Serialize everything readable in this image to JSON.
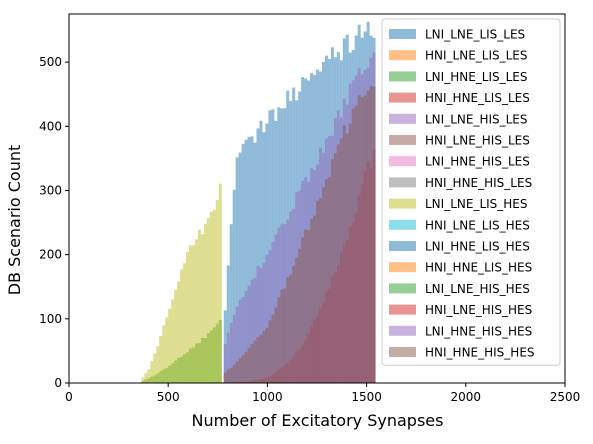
{
  "chart_data": {
    "type": "histogram",
    "xlabel": "Number of Excitatory Synapses",
    "ylabel": "DB Scenario Count",
    "xlim": [
      0,
      2500
    ],
    "ylim": [
      0,
      575
    ],
    "x_ticks": [
      "0",
      "500",
      "1000",
      "1500",
      "2000",
      "2500"
    ],
    "y_ticks": [
      "0",
      "100",
      "200",
      "300",
      "400",
      "500"
    ],
    "grid": false,
    "legend_position": "top-right",
    "bin_width": 15,
    "series": [
      {
        "name": "LNI_LNE_LIS_LES",
        "color": "#1f77b4",
        "x_start": 780,
        "x_end": 1545,
        "profile_points": [
          [
            780,
            80
          ],
          [
            840,
            345
          ],
          [
            900,
            370
          ],
          [
            1000,
            410
          ],
          [
            1100,
            440
          ],
          [
            1200,
            470
          ],
          [
            1300,
            500
          ],
          [
            1400,
            525
          ],
          [
            1450,
            540
          ],
          [
            1500,
            548
          ],
          [
            1545,
            548
          ]
        ]
      },
      {
        "name": "HNI_LNE_LIS_LES",
        "color": "#ff7f0e",
        "x_start": 0,
        "x_end": 0,
        "profile_points": []
      },
      {
        "name": "LNI_HNE_LIS_LES",
        "color": "#2ca02c",
        "x_start": 365,
        "x_end": 760,
        "profile_points": [
          [
            365,
            2
          ],
          [
            420,
            10
          ],
          [
            500,
            25
          ],
          [
            560,
            40
          ],
          [
            620,
            55
          ],
          [
            680,
            70
          ],
          [
            720,
            80
          ],
          [
            760,
            100
          ]
        ]
      },
      {
        "name": "HNI_HNE_LIS_LES",
        "color": "#d62728",
        "x_start": 780,
        "x_end": 1545,
        "profile_points": [
          [
            780,
            0
          ],
          [
            900,
            2
          ],
          [
            1000,
            8
          ],
          [
            1100,
            30
          ],
          [
            1200,
            70
          ],
          [
            1300,
            140
          ],
          [
            1400,
            220
          ],
          [
            1500,
            330
          ],
          [
            1545,
            360
          ]
        ]
      },
      {
        "name": "LNI_LNE_HIS_LES",
        "color": "#9467bd",
        "x_start": 780,
        "x_end": 1545,
        "profile_points": [
          [
            780,
            50
          ],
          [
            820,
            100
          ],
          [
            900,
            150
          ],
          [
            1000,
            200
          ],
          [
            1100,
            260
          ],
          [
            1200,
            320
          ],
          [
            1300,
            380
          ],
          [
            1400,
            440
          ],
          [
            1480,
            490
          ],
          [
            1545,
            515
          ]
        ]
      },
      {
        "name": "HNI_LNE_HIS_LES",
        "color": "#8c564b",
        "x_start": 780,
        "x_end": 1545,
        "profile_points": [
          [
            780,
            15
          ],
          [
            840,
            30
          ],
          [
            900,
            50
          ],
          [
            1000,
            90
          ],
          [
            1100,
            160
          ],
          [
            1200,
            240
          ],
          [
            1300,
            320
          ],
          [
            1400,
            400
          ],
          [
            1480,
            455
          ],
          [
            1545,
            480
          ]
        ]
      },
      {
        "name": "LNI_HNE_HIS_LES",
        "color": "#e377c2",
        "x_start": 0,
        "x_end": 0,
        "profile_points": []
      },
      {
        "name": "HNI_HNE_HIS_LES",
        "color": "#7f7f7f",
        "x_start": 0,
        "x_end": 0,
        "profile_points": []
      },
      {
        "name": "LNI_LNE_LIS_HES",
        "color": "#bcbd22",
        "x_start": 365,
        "x_end": 760,
        "profile_points": [
          [
            365,
            5
          ],
          [
            400,
            20
          ],
          [
            450,
            60
          ],
          [
            500,
            110
          ],
          [
            550,
            160
          ],
          [
            600,
            200
          ],
          [
            650,
            230
          ],
          [
            700,
            250
          ],
          [
            730,
            270
          ],
          [
            760,
            300
          ]
        ]
      },
      {
        "name": "HNI_LNE_LIS_HES",
        "color": "#17becf",
        "x_start": 0,
        "x_end": 0,
        "profile_points": []
      },
      {
        "name": "LNI_HNE_LIS_HES",
        "color": "#1f77b4",
        "x_start": 0,
        "x_end": 0,
        "profile_points": []
      },
      {
        "name": "HNI_HNE_LIS_HES",
        "color": "#ff7f0e",
        "x_start": 0,
        "x_end": 0,
        "profile_points": []
      },
      {
        "name": "LNI_LNE_HIS_HES",
        "color": "#2ca02c",
        "x_start": 0,
        "x_end": 0,
        "profile_points": []
      },
      {
        "name": "HNI_LNE_HIS_HES",
        "color": "#d62728",
        "x_start": 0,
        "x_end": 0,
        "profile_points": []
      },
      {
        "name": "LNI_HNE_HIS_HES",
        "color": "#9467bd",
        "x_start": 0,
        "x_end": 0,
        "profile_points": []
      },
      {
        "name": "HNI_HNE_HIS_HES",
        "color": "#8c564b",
        "x_start": 0,
        "x_end": 0,
        "profile_points": []
      }
    ]
  }
}
